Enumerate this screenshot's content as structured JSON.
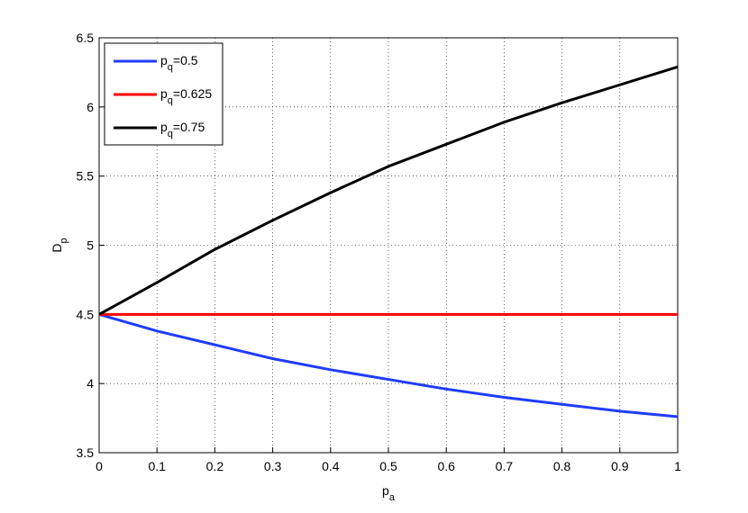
{
  "chart_data": {
    "type": "line",
    "x_label": "pa",
    "y_label": "Dp",
    "x": [
      0,
      0.1,
      0.2,
      0.3,
      0.4,
      0.5,
      0.6,
      0.7,
      0.8,
      0.9,
      1
    ],
    "series": [
      {
        "name": "pq=0.5",
        "color": "#1f3cff",
        "values": [
          4.5,
          4.38,
          4.28,
          4.18,
          4.1,
          4.03,
          3.96,
          3.9,
          3.85,
          3.8,
          3.76
        ]
      },
      {
        "name": "pq=0.625",
        "color": "#ff0000",
        "values": [
          4.5,
          4.5,
          4.5,
          4.5,
          4.5,
          4.5,
          4.5,
          4.5,
          4.5,
          4.5,
          4.5
        ]
      },
      {
        "name": "pq=0.75",
        "color": "#000000",
        "values": [
          4.5,
          4.73,
          4.97,
          5.18,
          5.38,
          5.57,
          5.73,
          5.89,
          6.03,
          6.16,
          6.29
        ]
      }
    ],
    "xlim": [
      0,
      1
    ],
    "xticks": [
      0,
      0.1,
      0.2,
      0.3,
      0.4,
      0.5,
      0.6,
      0.7,
      0.8,
      0.9,
      1
    ],
    "ylim": [
      3.5,
      6.5
    ],
    "yticks": [
      3.5,
      4,
      4.5,
      5,
      5.5,
      6,
      6.5
    ],
    "grid": true,
    "legend": "upper-left"
  }
}
